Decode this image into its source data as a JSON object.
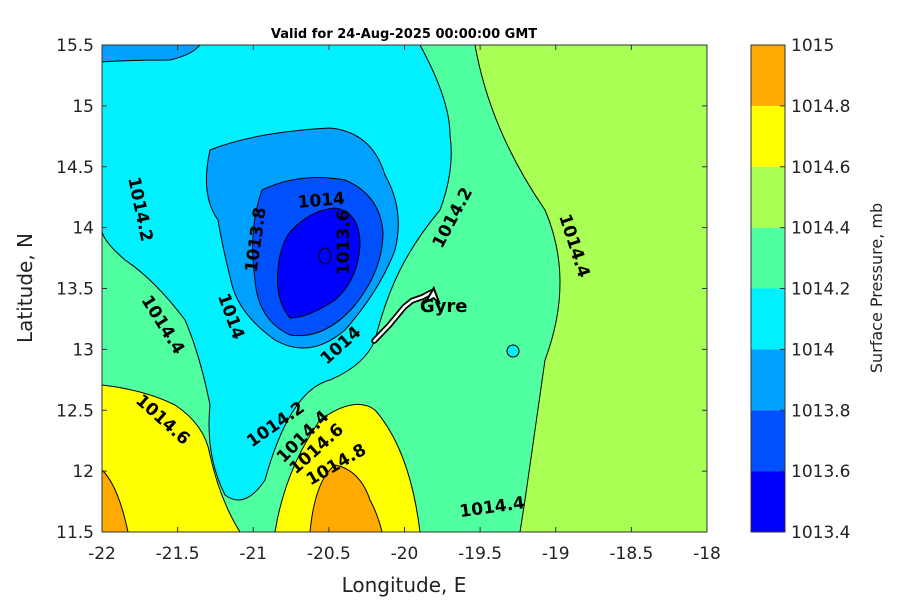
{
  "chart_data": {
    "type": "contour",
    "title": "Valid for 24-Aug-2025 00:00:00 GMT",
    "xlabel": "Longitude, E",
    "ylabel": "Latitude, N",
    "xlim": [
      -22,
      -18
    ],
    "ylim": [
      11.5,
      15.5
    ],
    "xticks": [
      "-22",
      "-21.5",
      "-21",
      "-20.5",
      "-20",
      "-19.5",
      "-19",
      "-18.5",
      "-18"
    ],
    "yticks": [
      "11.5",
      "12",
      "12.5",
      "13",
      "13.5",
      "14",
      "14.5",
      "15",
      "15.5"
    ],
    "colorbar": {
      "label": "Surface Pressure, mb",
      "levels": [
        1013.4,
        1013.6,
        1013.8,
        1014.0,
        1014.2,
        1014.4,
        1014.6,
        1014.8,
        1015.0
      ],
      "tick_labels": [
        "1013.4",
        "1013.6",
        "1013.8",
        "1014",
        "1014.2",
        "1014.4",
        "1014.6",
        "1014.8",
        "1015"
      ],
      "colors": [
        "#0000ff",
        "#0050ff",
        "#00a0ff",
        "#00f0ff",
        "#50ffa0",
        "#aaff55",
        "#ffff00",
        "#ffaa00",
        "#ff5000"
      ]
    },
    "contour_labels": [
      {
        "text": "1014",
        "lon": -20.55,
        "lat": 14.22,
        "angle": -5
      },
      {
        "text": "1014.2",
        "lon": -21.75,
        "lat": 14.15,
        "angle": 78
      },
      {
        "text": "1014.2",
        "lon": -19.68,
        "lat": 14.08,
        "angle": -62
      },
      {
        "text": "1013.8",
        "lon": -20.98,
        "lat": 13.9,
        "angle": -82
      },
      {
        "text": "1013.6",
        "lon": -20.4,
        "lat": 13.88,
        "angle": -90
      },
      {
        "text": "1014.4",
        "lon": -18.88,
        "lat": 13.85,
        "angle": 72
      },
      {
        "text": "1014.4",
        "lon": -21.6,
        "lat": 13.2,
        "angle": 58
      },
      {
        "text": "1014",
        "lon": -21.15,
        "lat": 13.27,
        "angle": 70
      },
      {
        "text": "1014",
        "lon": -20.42,
        "lat": 13.03,
        "angle": -42
      },
      {
        "text": "1014.6",
        "lon": -21.6,
        "lat": 12.42,
        "angle": 42
      },
      {
        "text": "1014.2",
        "lon": -20.85,
        "lat": 12.38,
        "angle": -35
      },
      {
        "text": "1014.4",
        "lon": -20.67,
        "lat": 12.28,
        "angle": -45
      },
      {
        "text": "1014.6",
        "lon": -20.58,
        "lat": 12.18,
        "angle": -42
      },
      {
        "text": "1014.8",
        "lon": -20.45,
        "lat": 12.05,
        "angle": -30
      },
      {
        "text": "1014.4",
        "lon": -19.42,
        "lat": 11.7,
        "angle": -8
      }
    ],
    "track": {
      "name": "Gyre",
      "points": [
        [
          -20.2,
          13.07
        ],
        [
          -20.1,
          13.2
        ],
        [
          -20.0,
          13.35
        ],
        [
          -19.95,
          13.4
        ],
        [
          -19.88,
          13.43
        ],
        [
          -19.82,
          13.47
        ]
      ]
    }
  }
}
